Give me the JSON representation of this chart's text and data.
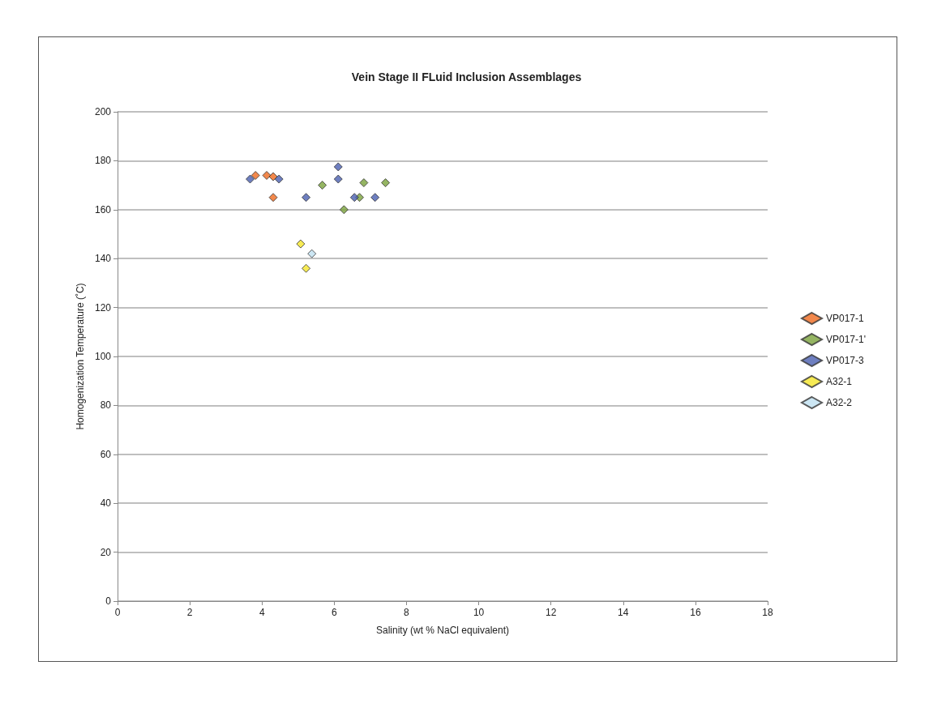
{
  "chart_data": {
    "type": "scatter",
    "title": "Vein Stage II FLuid Inclusion Assemblages",
    "xlabel": "Salinity (wt % NaCl equivalent)",
    "ylabel": "Homogenization Temperature (˚C)",
    "xlim": [
      0,
      18
    ],
    "xticks": [
      0,
      2,
      4,
      6,
      8,
      10,
      12,
      14,
      16,
      18
    ],
    "ylim": [
      0,
      200
    ],
    "yticks": [
      0,
      20,
      40,
      60,
      80,
      100,
      120,
      140,
      160,
      180,
      200
    ],
    "grid": "y",
    "legend": "right",
    "marker": "diamond",
    "series": [
      {
        "name": "VP017-1",
        "color": "#ef6a1f",
        "x": [
          3.82,
          4.13,
          4.31,
          4.31
        ],
        "values": [
          174,
          174,
          173.5,
          165
        ]
      },
      {
        "name": "VP017-1'",
        "color": "#7aa33c",
        "x": [
          5.67,
          6.7,
          6.82,
          7.42,
          6.27
        ],
        "values": [
          170,
          165,
          171,
          171,
          160
        ]
      },
      {
        "name": "VP017-3",
        "color": "#4a5fb0",
        "x": [
          3.67,
          4.47,
          5.22,
          6.11,
          6.11,
          6.56,
          7.13
        ],
        "values": [
          172.5,
          172.5,
          165,
          177.5,
          172.5,
          165,
          165
        ]
      },
      {
        "name": "A32-1",
        "color": "#f5e62a",
        "x": [
          5.07,
          5.22
        ],
        "values": [
          146,
          136
        ]
      },
      {
        "name": "A32-2",
        "color": "#bfe0f0",
        "x": [
          5.38
        ],
        "values": [
          142
        ]
      }
    ]
  }
}
